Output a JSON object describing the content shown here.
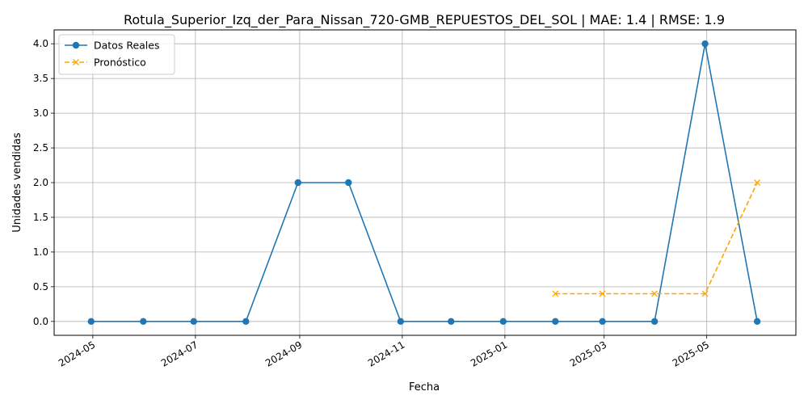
{
  "chart_data": {
    "type": "line",
    "title": "Rotula_Superior_Izq_der_Para_Nissan_720-GMB_REPUESTOS_DEL_SOL | MAE: 1.4 | RMSE: 1.9",
    "xlabel": "Fecha",
    "ylabel": "Unidades vendidas",
    "ylim": [
      -0.2,
      4.2
    ],
    "xlim": [
      "2024-04-08",
      "2025-06-23"
    ],
    "grid": true,
    "legend_position": "top-left",
    "x_ticks": [
      "2024-05",
      "2024-07",
      "2024-09",
      "2024-11",
      "2025-01",
      "2025-03",
      "2025-05"
    ],
    "y_ticks": [
      "0.0",
      "0.5",
      "1.0",
      "1.5",
      "2.0",
      "2.5",
      "3.0",
      "3.5",
      "4.0"
    ],
    "series": [
      {
        "name": "Datos Reales",
        "color": "#1f77b4",
        "style": "solid",
        "marker": "circle",
        "x": [
          "2024-04-30",
          "2024-05-31",
          "2024-06-30",
          "2024-07-31",
          "2024-08-31",
          "2024-09-30",
          "2024-10-31",
          "2024-11-30",
          "2024-12-31",
          "2025-01-31",
          "2025-02-28",
          "2025-03-31",
          "2025-04-30",
          "2025-05-31"
        ],
        "values": [
          0,
          0,
          0,
          0,
          2,
          2,
          0,
          0,
          0,
          0,
          0,
          0,
          4,
          0
        ]
      },
      {
        "name": "Pronóstico",
        "color": "#ffa500",
        "style": "dashed",
        "marker": "x",
        "x": [
          "2025-01-31",
          "2025-02-28",
          "2025-03-31",
          "2025-04-30",
          "2025-05-31"
        ],
        "values": [
          0.4,
          0.4,
          0.4,
          0.4,
          2.0
        ]
      }
    ]
  }
}
